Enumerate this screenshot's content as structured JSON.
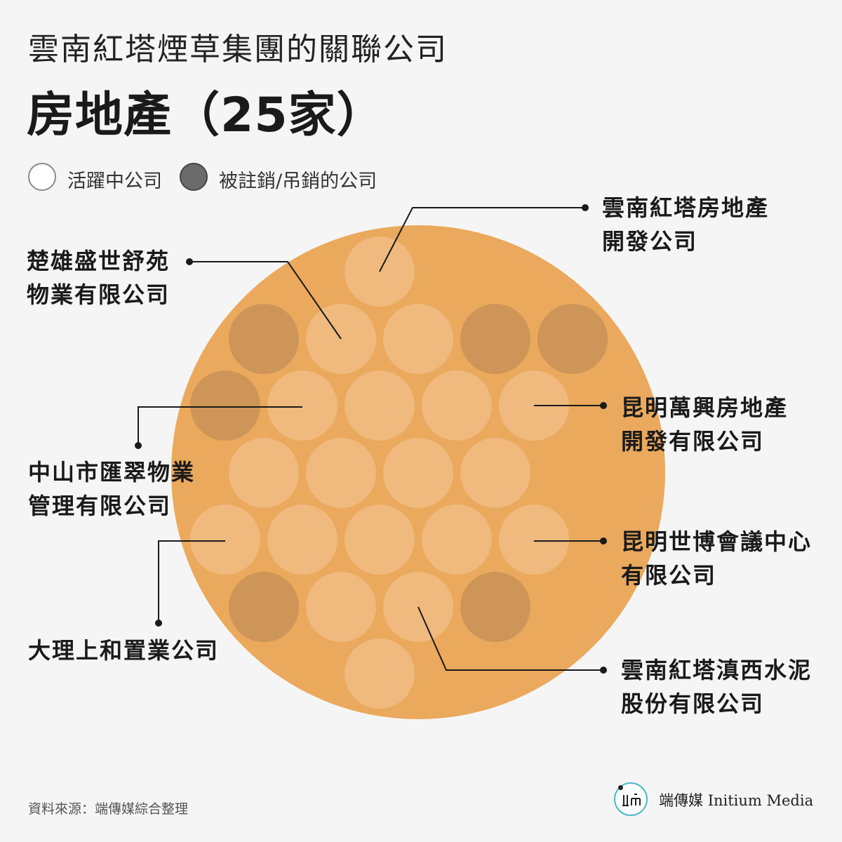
{
  "header": {
    "subtitle": "雲南紅塔煙草集團的關聯公司",
    "title": "房地產（25家）"
  },
  "legend": {
    "active_label": "活躍中公司",
    "inactive_label": "被註銷/吊銷的公司"
  },
  "colors": {
    "background": "#f5f5f5",
    "big_circle": "#eaa95c",
    "active": "#f0b97e",
    "inactive": "#cd9658",
    "line": "#1a1a1a"
  },
  "companies": [
    {
      "status": "active"
    },
    {
      "status": "inactive"
    },
    {
      "status": "active"
    },
    {
      "status": "active"
    },
    {
      "status": "inactive"
    },
    {
      "status": "inactive"
    },
    {
      "status": "inactive"
    },
    {
      "status": "active"
    },
    {
      "status": "active"
    },
    {
      "status": "active"
    },
    {
      "status": "active"
    },
    {
      "status": "active"
    },
    {
      "status": "active"
    },
    {
      "status": "active"
    },
    {
      "status": "active"
    },
    {
      "status": "active"
    },
    {
      "status": "active"
    },
    {
      "status": "active"
    },
    {
      "status": "active"
    },
    {
      "status": "active"
    },
    {
      "status": "inactive"
    },
    {
      "status": "active"
    },
    {
      "status": "active"
    },
    {
      "status": "inactive"
    },
    {
      "status": "active"
    }
  ],
  "callouts": [
    {
      "line1": "雲南紅塔房地產",
      "line2": "開發公司"
    },
    {
      "line1": "楚雄盛世舒苑",
      "line2": "物業有限公司"
    },
    {
      "line1": "昆明萬興房地產",
      "line2": "開發有限公司"
    },
    {
      "line1": "中山市匯翠物業",
      "line2": "管理有限公司"
    },
    {
      "line1": "昆明世博會議中心",
      "line2": "有限公司"
    },
    {
      "line1": "大理上和置業公司",
      "line2": ""
    },
    {
      "line1": "雲南紅塔滇西水泥",
      "line2": "股份有限公司"
    }
  ],
  "footer": {
    "source": "資料來源：端傳媒綜合整理",
    "logo_chinese": "端傳媒",
    "logo_english": "Initium Media",
    "logo_mark": "IIm"
  }
}
